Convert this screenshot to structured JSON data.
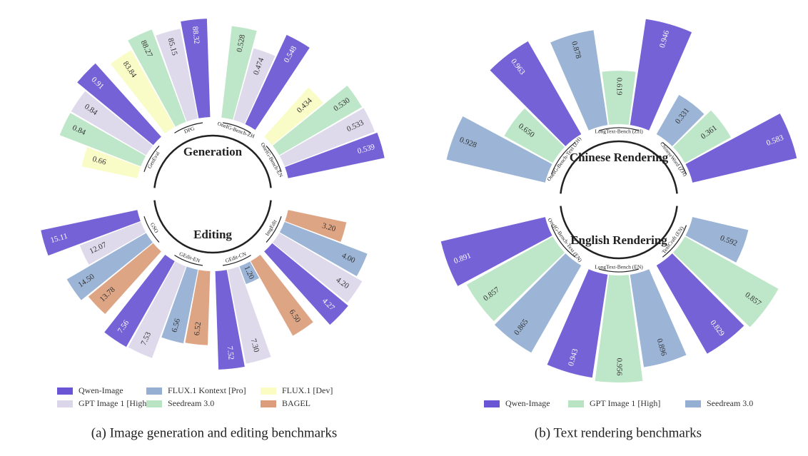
{
  "chart_data": [
    {
      "type": "radial_bar",
      "caption": "(a) Image generation and editing benchmarks",
      "sections": [
        {
          "name": "Generation",
          "categories": [
            "GenEval",
            "DPG",
            "OneIG-Bench-ZH",
            "OneIG-Bench-EN"
          ]
        },
        {
          "name": "Editing",
          "categories": [
            "ImgEdit",
            "GEdit-CN",
            "GEdit-EN",
            "GSO"
          ]
        }
      ],
      "series": [
        {
          "name": "Qwen-Image",
          "color": "#6a55d4",
          "values": [
            0.91,
            88.32,
            0.548,
            0.539,
            4.27,
            7.52,
            7.56,
            15.11
          ],
          "value_labels": [
            "0.91",
            "88.32",
            "0.548",
            "0.539",
            "4.27",
            "7.52",
            "7.56",
            "15.11"
          ]
        },
        {
          "name": "GPT Image 1 [High]",
          "color": "#dcd6ea",
          "values": [
            0.84,
            85.15,
            0.474,
            0.533,
            4.2,
            7.3,
            7.53,
            12.07
          ],
          "value_labels": [
            "0.84",
            "85.15",
            "0.474",
            "0.533",
            "4.20",
            "7.30",
            "7.53",
            "12.07"
          ]
        },
        {
          "name": "FLUX.1 Kontext [Pro]",
          "color": "#94afd2",
          "values": [
            null,
            null,
            null,
            null,
            4.0,
            1.2,
            6.56,
            14.5
          ],
          "value_labels": [
            null,
            null,
            null,
            null,
            "4.00",
            "1.20",
            "6.56",
            "14.50"
          ]
        },
        {
          "name": "Seedream 3.0",
          "color": "#b9e4c3",
          "values": [
            0.84,
            88.27,
            0.528,
            0.53,
            null,
            null,
            null,
            null
          ],
          "value_labels": [
            "0.84",
            "88.27",
            "0.528",
            "0.530",
            null,
            null,
            null,
            null
          ]
        },
        {
          "name": "FLUX.1 [Dev]",
          "color": "#fafcc2",
          "values": [
            0.66,
            83.84,
            null,
            0.434,
            null,
            null,
            null,
            null
          ],
          "value_labels": [
            "0.66",
            "83.84",
            null,
            "0.434",
            null,
            null,
            null,
            null
          ]
        },
        {
          "name": "BAGEL",
          "color": "#db9d7b",
          "values": [
            null,
            null,
            null,
            null,
            3.2,
            6.5,
            6.52,
            13.78
          ],
          "value_labels": [
            null,
            null,
            null,
            null,
            "3.20",
            "6.50",
            "6.52",
            "13.78"
          ]
        }
      ]
    },
    {
      "type": "radial_bar",
      "caption": "(b) Text rendering benchmarks",
      "sections": [
        {
          "name": "Chinese Rendering",
          "categories": [
            "OneIG-Bench-Text (ZH)",
            "LongText-Bench (ZH)",
            "ChineseWord (ZH)"
          ]
        },
        {
          "name": "English Rendering",
          "categories": [
            "TextCraft (EN)",
            "LongText-Bench (EN)",
            "OneIG-Bench-Text (EN)"
          ]
        }
      ],
      "series": [
        {
          "name": "Qwen-Image",
          "color": "#6a55d4",
          "values": [
            0.963,
            0.946,
            0.583,
            0.829,
            0.943,
            0.891
          ],
          "value_labels": [
            "0.963",
            "0.946",
            "0.583",
            "0.829",
            "0.943",
            "0.891"
          ]
        },
        {
          "name": "GPT Image 1 [High]",
          "color": "#b9e4c3",
          "values": [
            0.65,
            0.619,
            0.361,
            0.857,
            0.956,
            0.857
          ],
          "value_labels": [
            "0.650",
            "0.619",
            "0.361",
            "0.857",
            "0.956",
            "0.857"
          ]
        },
        {
          "name": "Seedream 3.0",
          "color": "#94afd2",
          "values": [
            0.928,
            0.878,
            0.331,
            0.592,
            0.896,
            0.865
          ],
          "value_labels": [
            "0.928",
            "0.878",
            "0.331",
            "0.592",
            "0.896",
            "0.865"
          ]
        }
      ]
    }
  ]
}
